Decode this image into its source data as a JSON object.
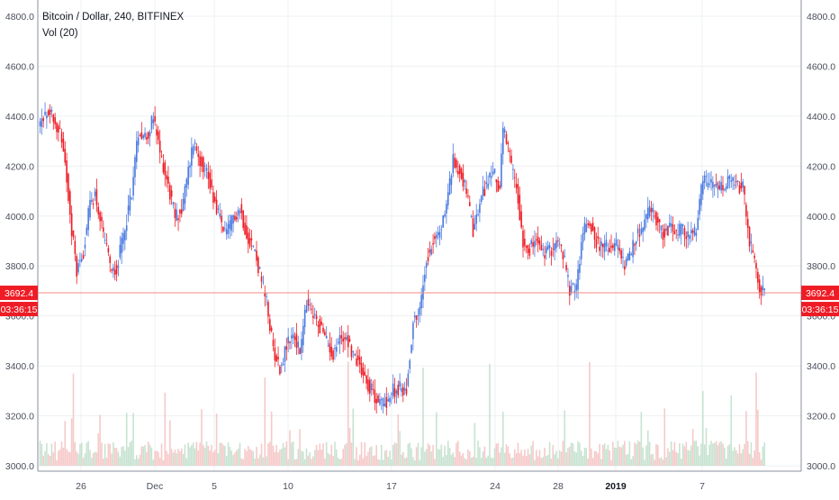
{
  "legend": {
    "symbol": "Bitcoin / Dollar, 240, BITFINEX",
    "indicator": "Vol (20)"
  },
  "price_tag": {
    "value": "3692.4",
    "countdown": "03:36:15"
  },
  "colors": {
    "up": "#4a7ae0",
    "down": "#ee1c25",
    "vol_up": "#c2e0cc",
    "vol_down": "#f5c4c4",
    "grid": "#eef0f3",
    "axis": "#8a8f9c",
    "price_line": "#f28b82",
    "tag_bg": "#ee1c25"
  },
  "chart_data": {
    "type": "candlestick",
    "symbol": "Bitcoin / Dollar",
    "interval": "240",
    "exchange": "BITFINEX",
    "volume_indicator": "Vol (20)",
    "last_price": 3692.4,
    "ylim": [
      3000,
      4880
    ],
    "y_ticks": [
      "3000.0",
      "3200.0",
      "3400.0",
      "3600.0",
      "3800.0",
      "4000.0",
      "4200.0",
      "4400.0",
      "4600.0",
      "4800.0"
    ],
    "x_ticks": [
      {
        "label": "26",
        "bold": false
      },
      {
        "label": "Dec",
        "bold": false
      },
      {
        "label": "5",
        "bold": false
      },
      {
        "label": "10",
        "bold": false
      },
      {
        "label": "17",
        "bold": false
      },
      {
        "label": "24",
        "bold": false
      },
      {
        "label": "28",
        "bold": false
      },
      {
        "label": "2019",
        "bold": true
      },
      {
        "label": "7",
        "bold": false
      }
    ],
    "grid": true,
    "price_path": [
      [
        0,
        4370
      ],
      [
        4,
        4410
      ],
      [
        8,
        4400
      ],
      [
        12,
        4330
      ],
      [
        15,
        4220
      ],
      [
        19,
        3950
      ],
      [
        22,
        3780
      ],
      [
        26,
        3860
      ],
      [
        30,
        4050
      ],
      [
        33,
        4090
      ],
      [
        37,
        3950
      ],
      [
        42,
        3800
      ],
      [
        46,
        3790
      ],
      [
        50,
        3920
      ],
      [
        55,
        4100
      ],
      [
        59,
        4340
      ],
      [
        64,
        4320
      ],
      [
        68,
        4390
      ],
      [
        72,
        4250
      ],
      [
        76,
        4150
      ],
      [
        81,
        4000
      ],
      [
        85,
        4020
      ],
      [
        89,
        4180
      ],
      [
        92,
        4300
      ],
      [
        96,
        4230
      ],
      [
        100,
        4180
      ],
      [
        104,
        4080
      ],
      [
        108,
        3990
      ],
      [
        112,
        3920
      ],
      [
        116,
        4000
      ],
      [
        120,
        4030
      ],
      [
        124,
        3930
      ],
      [
        128,
        3880
      ],
      [
        132,
        3770
      ],
      [
        136,
        3650
      ],
      [
        140,
        3470
      ],
      [
        144,
        3390
      ],
      [
        148,
        3480
      ],
      [
        152,
        3530
      ],
      [
        156,
        3450
      ],
      [
        160,
        3650
      ],
      [
        164,
        3600
      ],
      [
        168,
        3560
      ],
      [
        172,
        3500
      ],
      [
        176,
        3450
      ],
      [
        180,
        3510
      ],
      [
        184,
        3520
      ],
      [
        188,
        3440
      ],
      [
        192,
        3410
      ],
      [
        196,
        3340
      ],
      [
        200,
        3290
      ],
      [
        204,
        3250
      ],
      [
        208,
        3260
      ],
      [
        212,
        3300
      ],
      [
        216,
        3310
      ],
      [
        220,
        3300
      ],
      [
        224,
        3580
      ],
      [
        228,
        3620
      ],
      [
        232,
        3830
      ],
      [
        236,
        3900
      ],
      [
        240,
        3930
      ],
      [
        244,
        4050
      ],
      [
        248,
        4220
      ],
      [
        252,
        4180
      ],
      [
        256,
        4100
      ],
      [
        260,
        3930
      ],
      [
        264,
        4050
      ],
      [
        268,
        4130
      ],
      [
        272,
        4180
      ],
      [
        276,
        4110
      ],
      [
        278,
        4350
      ],
      [
        282,
        4230
      ],
      [
        286,
        4120
      ],
      [
        290,
        3900
      ],
      [
        294,
        3870
      ],
      [
        298,
        3900
      ],
      [
        302,
        3850
      ],
      [
        306,
        3860
      ],
      [
        310,
        3900
      ],
      [
        314,
        3850
      ],
      [
        318,
        3700
      ],
      [
        322,
        3720
      ],
      [
        326,
        3940
      ],
      [
        330,
        3980
      ],
      [
        334,
        3900
      ],
      [
        338,
        3870
      ],
      [
        342,
        3880
      ],
      [
        346,
        3880
      ],
      [
        350,
        3810
      ],
      [
        354,
        3830
      ],
      [
        358,
        3920
      ],
      [
        362,
        3950
      ],
      [
        366,
        4030
      ],
      [
        370,
        3990
      ],
      [
        374,
        3930
      ],
      [
        378,
        3950
      ],
      [
        382,
        3940
      ],
      [
        386,
        3940
      ],
      [
        390,
        3920
      ],
      [
        394,
        3940
      ],
      [
        398,
        4150
      ],
      [
        402,
        4120
      ],
      [
        406,
        4120
      ],
      [
        410,
        4110
      ],
      [
        414,
        4140
      ],
      [
        418,
        4120
      ],
      [
        422,
        4110
      ],
      [
        426,
        3900
      ],
      [
        429,
        3820
      ],
      [
        432,
        3700
      ],
      [
        435,
        3692.4
      ]
    ],
    "volume": {
      "scale_max": 1,
      "spike_indices": [
        20,
        75,
        135,
        185,
        230,
        270,
        330,
        398,
        415,
        430
      ]
    }
  }
}
